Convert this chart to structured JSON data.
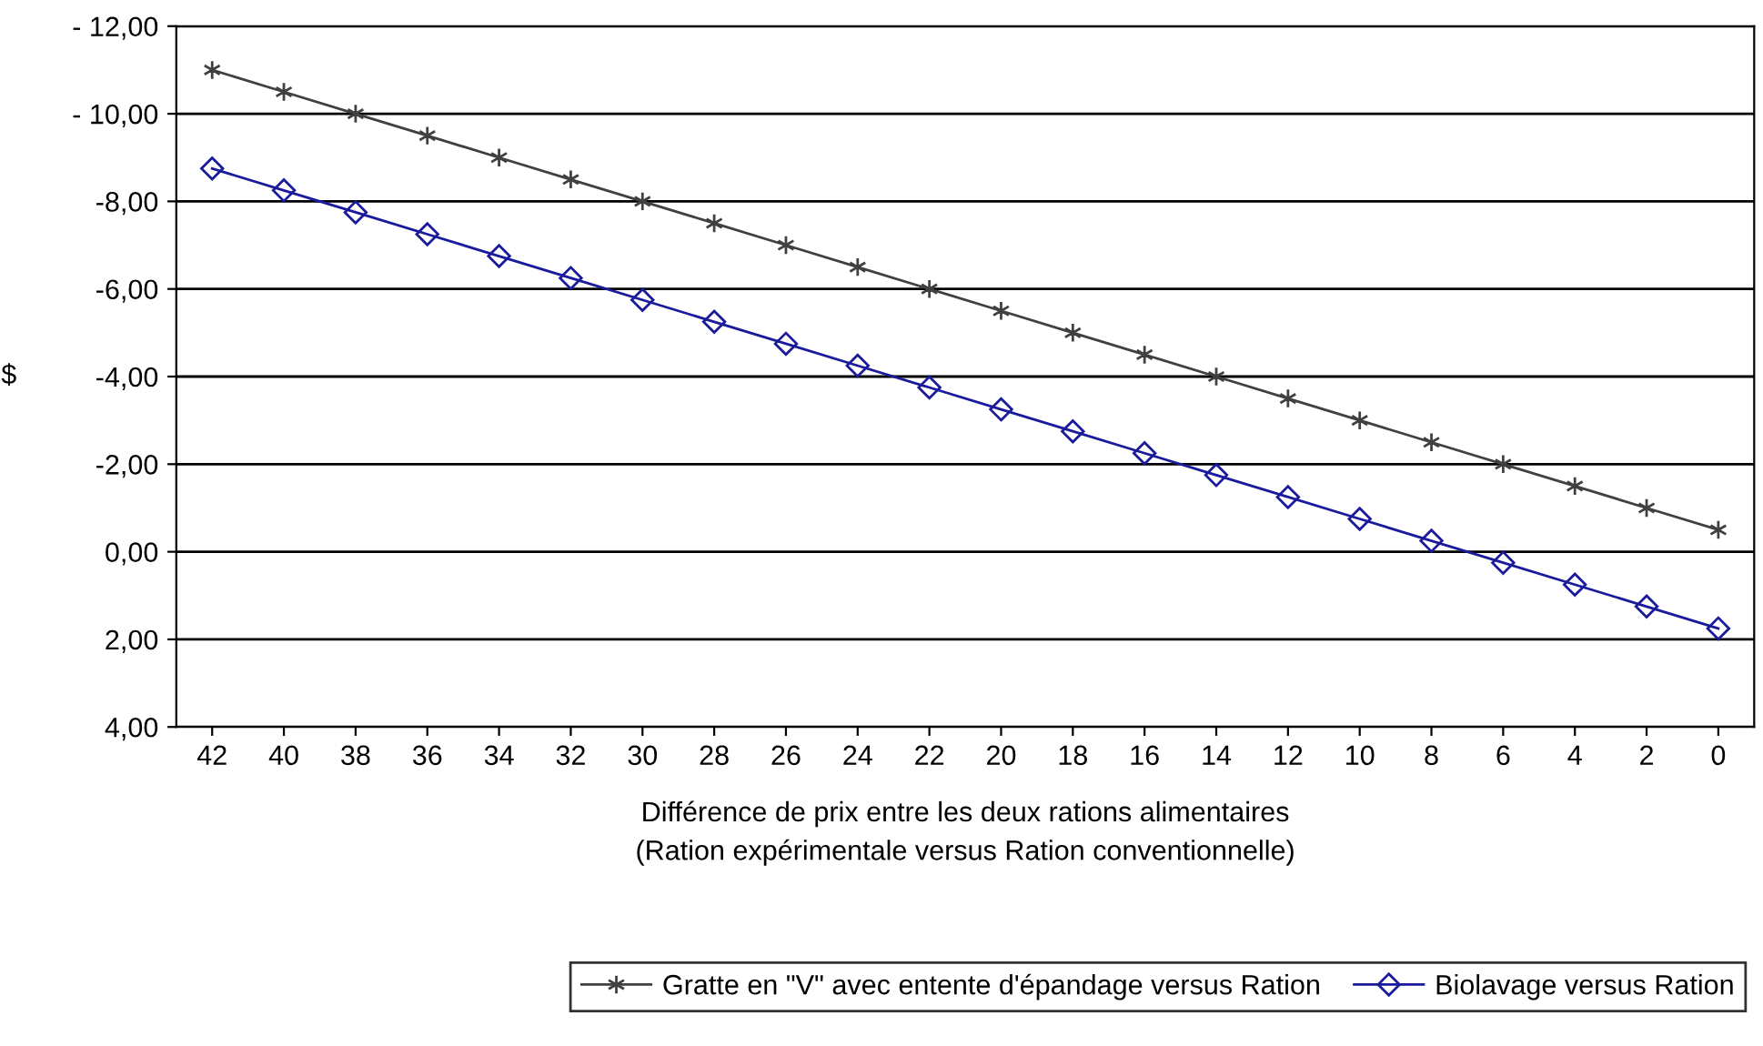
{
  "chart_data": {
    "type": "line",
    "xlabel": "Différence de prix entre les deux rations alimentaires\n(Ration expérimentale versus Ration conventionnelle)",
    "ylabel": "$",
    "categories": [
      "42",
      "40",
      "38",
      "36",
      "34",
      "32",
      "30",
      "28",
      "26",
      "24",
      "22",
      "20",
      "18",
      "16",
      "14",
      "12",
      "10",
      "8",
      "6",
      "4",
      "2",
      "0"
    ],
    "series": [
      {
        "name": "Gratte en \"V\" avec entente d'épandage versus Ration",
        "color": "#404040",
        "marker": "cross",
        "values": [
          -11.0,
          -10.5,
          -10.0,
          -9.5,
          -9.0,
          -8.5,
          -8.0,
          -7.5,
          -7.0,
          -6.5,
          -6.0,
          -5.5,
          -5.0,
          -4.5,
          -4.0,
          -3.5,
          -3.0,
          -2.5,
          -2.0,
          -1.5,
          -1.0,
          -0.5
        ]
      },
      {
        "name": "Biolavage versus Ration",
        "color": "#1a1a9c",
        "marker": "diamond",
        "values": [
          -8.75,
          -8.25,
          -7.75,
          -7.25,
          -6.75,
          -6.25,
          -5.75,
          -5.25,
          -4.75,
          -4.25,
          -3.75,
          -3.25,
          -2.75,
          -2.25,
          -1.75,
          -1.25,
          -0.75,
          -0.25,
          0.25,
          0.75,
          1.25,
          1.75
        ]
      }
    ],
    "ylim": [
      4,
      -12
    ],
    "yticks": [
      {
        "value": -12,
        "label": "- 12,00"
      },
      {
        "value": -10,
        "label": "- 10,00"
      },
      {
        "value": -8,
        "label": "-8,00"
      },
      {
        "value": -6,
        "label": "-6,00"
      },
      {
        "value": -4,
        "label": "-4,00"
      },
      {
        "value": -2,
        "label": "-2,00"
      },
      {
        "value": 0,
        "label": "0,00"
      },
      {
        "value": 2,
        "label": "2,00"
      },
      {
        "value": 4,
        "label": "4,00"
      }
    ],
    "grid": "y",
    "legend": "bottom",
    "line_style": "solid"
  }
}
